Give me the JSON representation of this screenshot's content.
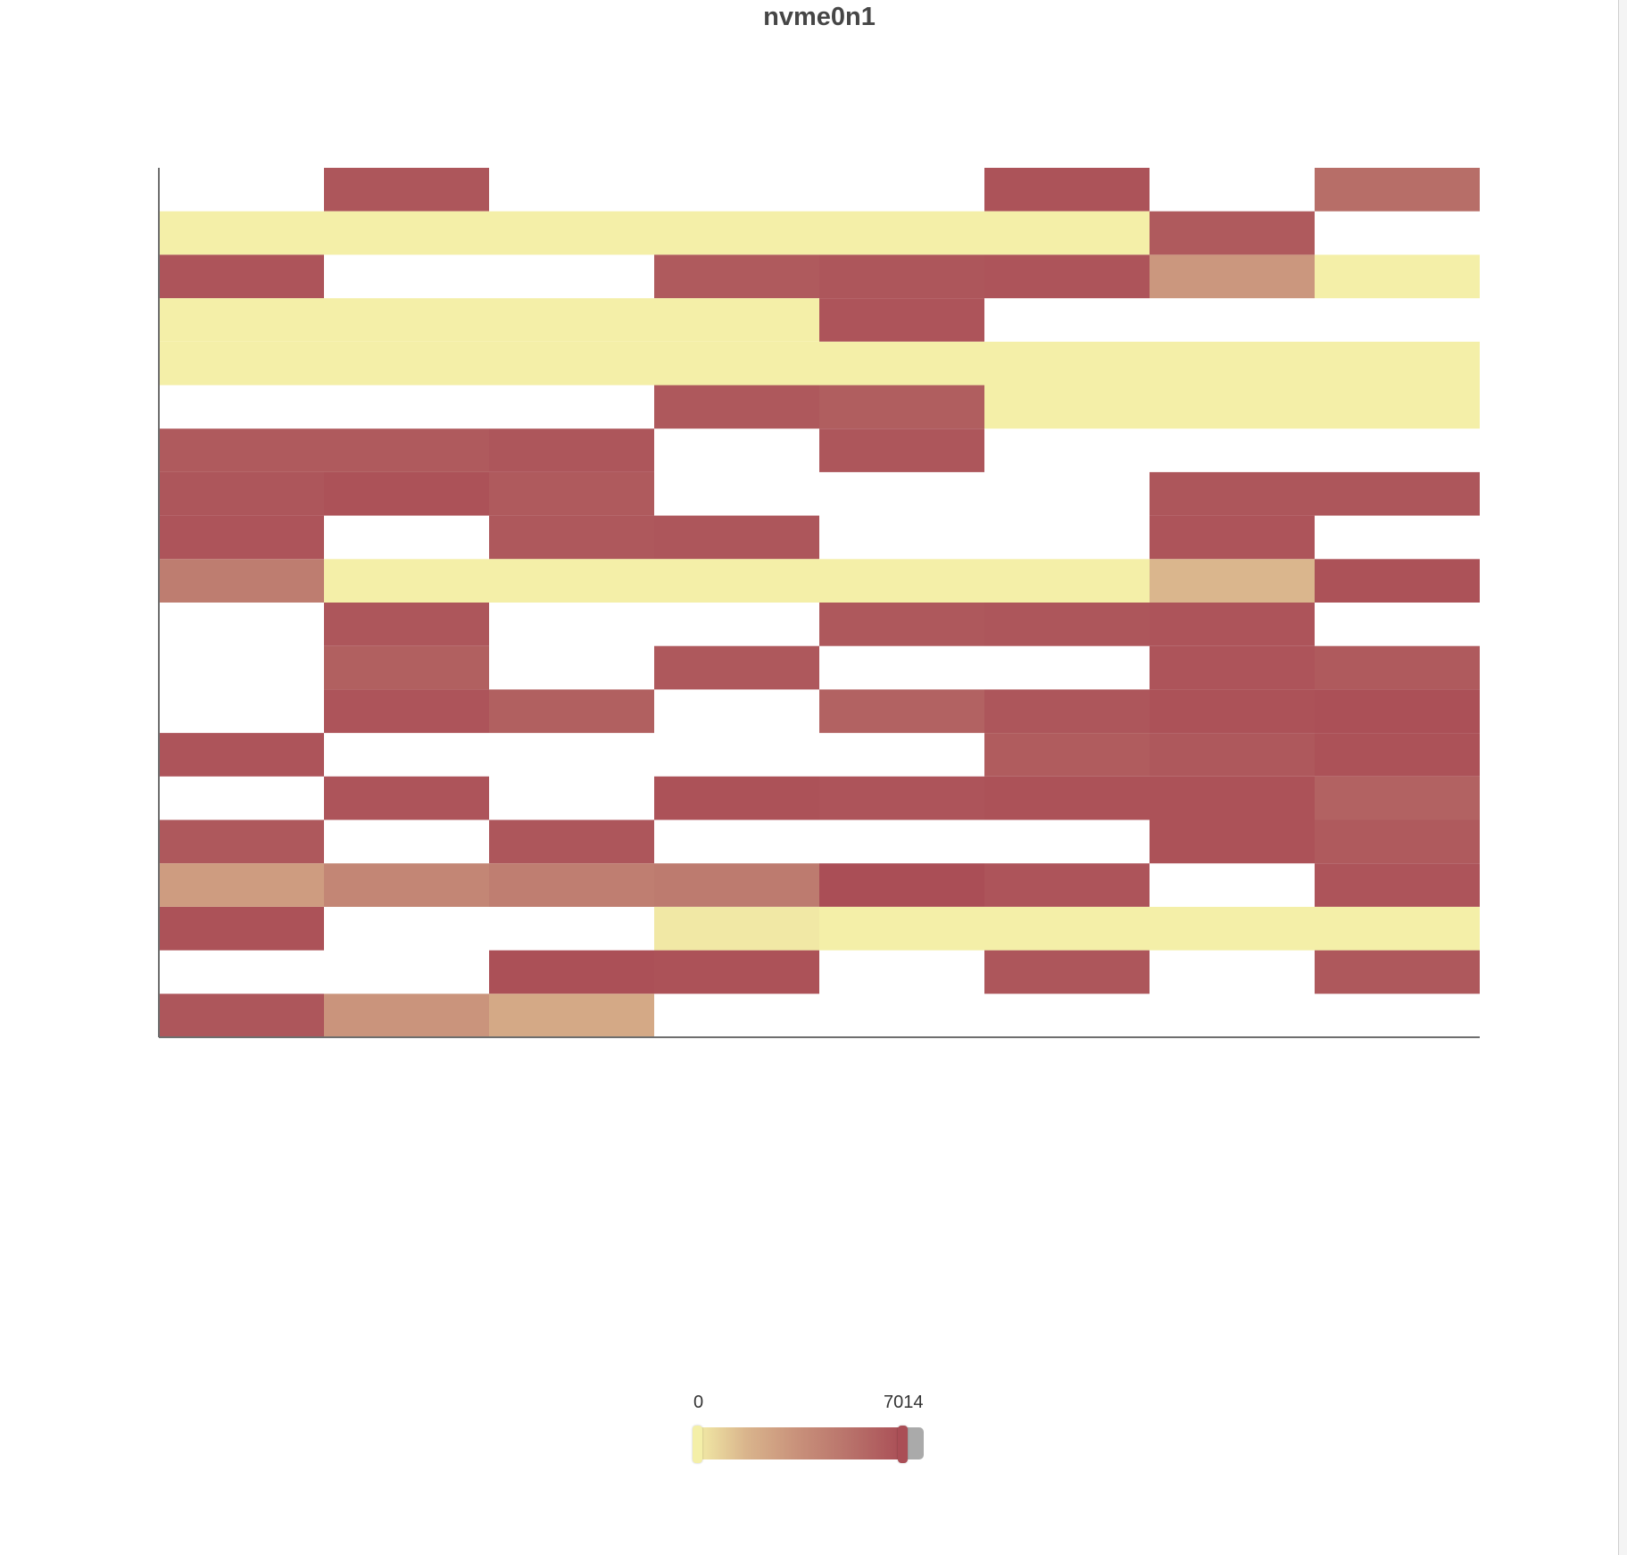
{
  "chart_data": {
    "type": "heatmap",
    "title": "nvme0n1",
    "columns": 8,
    "rows": 20,
    "visual_map": {
      "min": 0,
      "max": 7014,
      "min_label": "0",
      "max_label": "7014",
      "colors": [
        "#f4efa8",
        "#d9b48c",
        "#c8907a",
        "#b8716a",
        "#aa4e56"
      ],
      "out_of_range_color": "#aaaaaa"
    },
    "points": [
      [
        1,
        19,
        6600
      ],
      [
        5,
        19,
        6750
      ],
      [
        7,
        19,
        5400
      ],
      [
        0,
        18,
        0
      ],
      [
        1,
        18,
        0
      ],
      [
        2,
        18,
        0
      ],
      [
        3,
        18,
        0
      ],
      [
        4,
        18,
        0
      ],
      [
        5,
        18,
        0
      ],
      [
        6,
        18,
        6400
      ],
      [
        0,
        17,
        6700
      ],
      [
        3,
        17,
        6400
      ],
      [
        4,
        17,
        6600
      ],
      [
        5,
        17,
        6700
      ],
      [
        6,
        17,
        3150
      ],
      [
        7,
        17,
        0
      ],
      [
        0,
        16,
        0
      ],
      [
        1,
        16,
        0
      ],
      [
        2,
        16,
        0
      ],
      [
        3,
        16,
        0
      ],
      [
        4,
        16,
        6700
      ],
      [
        0,
        15,
        0
      ],
      [
        1,
        15,
        0
      ],
      [
        2,
        15,
        0
      ],
      [
        3,
        15,
        0
      ],
      [
        4,
        15,
        0
      ],
      [
        5,
        15,
        0
      ],
      [
        6,
        15,
        0
      ],
      [
        7,
        15,
        0
      ],
      [
        3,
        14,
        6500
      ],
      [
        4,
        14,
        6200
      ],
      [
        5,
        14,
        0
      ],
      [
        6,
        14,
        0
      ],
      [
        7,
        14,
        0
      ],
      [
        0,
        13,
        6400
      ],
      [
        1,
        13,
        6400
      ],
      [
        2,
        13,
        6600
      ],
      [
        4,
        13,
        6600
      ],
      [
        0,
        12,
        6600
      ],
      [
        1,
        12,
        6800
      ],
      [
        2,
        12,
        6400
      ],
      [
        6,
        12,
        6600
      ],
      [
        7,
        12,
        6600
      ],
      [
        0,
        11,
        6700
      ],
      [
        2,
        11,
        6500
      ],
      [
        3,
        11,
        6600
      ],
      [
        6,
        11,
        6700
      ],
      [
        0,
        10,
        4600
      ],
      [
        1,
        10,
        0
      ],
      [
        2,
        10,
        0
      ],
      [
        3,
        10,
        0
      ],
      [
        4,
        10,
        0
      ],
      [
        5,
        10,
        0
      ],
      [
        6,
        10,
        1700
      ],
      [
        7,
        10,
        6800
      ],
      [
        1,
        9,
        6600
      ],
      [
        4,
        9,
        6500
      ],
      [
        5,
        9,
        6600
      ],
      [
        6,
        9,
        6700
      ],
      [
        1,
        8,
        6100
      ],
      [
        3,
        8,
        6500
      ],
      [
        6,
        8,
        6700
      ],
      [
        7,
        8,
        6400
      ],
      [
        1,
        7,
        6700
      ],
      [
        2,
        7,
        6100
      ],
      [
        4,
        7,
        6000
      ],
      [
        5,
        7,
        6600
      ],
      [
        6,
        7,
        6800
      ],
      [
        7,
        7,
        6900
      ],
      [
        0,
        6,
        6700
      ],
      [
        5,
        6,
        6300
      ],
      [
        6,
        6,
        6500
      ],
      [
        7,
        6,
        6800
      ],
      [
        1,
        5,
        6700
      ],
      [
        3,
        5,
        6800
      ],
      [
        4,
        5,
        6700
      ],
      [
        5,
        5,
        6800
      ],
      [
        6,
        5,
        6800
      ],
      [
        7,
        5,
        6000
      ],
      [
        0,
        4,
        6500
      ],
      [
        2,
        4,
        6600
      ],
      [
        6,
        4,
        6800
      ],
      [
        7,
        4,
        6400
      ],
      [
        0,
        3,
        2900
      ],
      [
        1,
        3,
        4100
      ],
      [
        2,
        3,
        4500
      ],
      [
        3,
        3,
        4700
      ],
      [
        4,
        3,
        7014
      ],
      [
        5,
        3,
        6700
      ],
      [
        7,
        3,
        6700
      ],
      [
        0,
        2,
        6800
      ],
      [
        3,
        2,
        200
      ],
      [
        4,
        2,
        0
      ],
      [
        5,
        2,
        0
      ],
      [
        6,
        2,
        0
      ],
      [
        7,
        2,
        0
      ],
      [
        2,
        1,
        6900
      ],
      [
        3,
        1,
        6800
      ],
      [
        5,
        1,
        6600
      ],
      [
        7,
        1,
        6500
      ],
      [
        0,
        0,
        6600
      ],
      [
        1,
        0,
        3300
      ],
      [
        2,
        0,
        2300
      ]
    ]
  }
}
